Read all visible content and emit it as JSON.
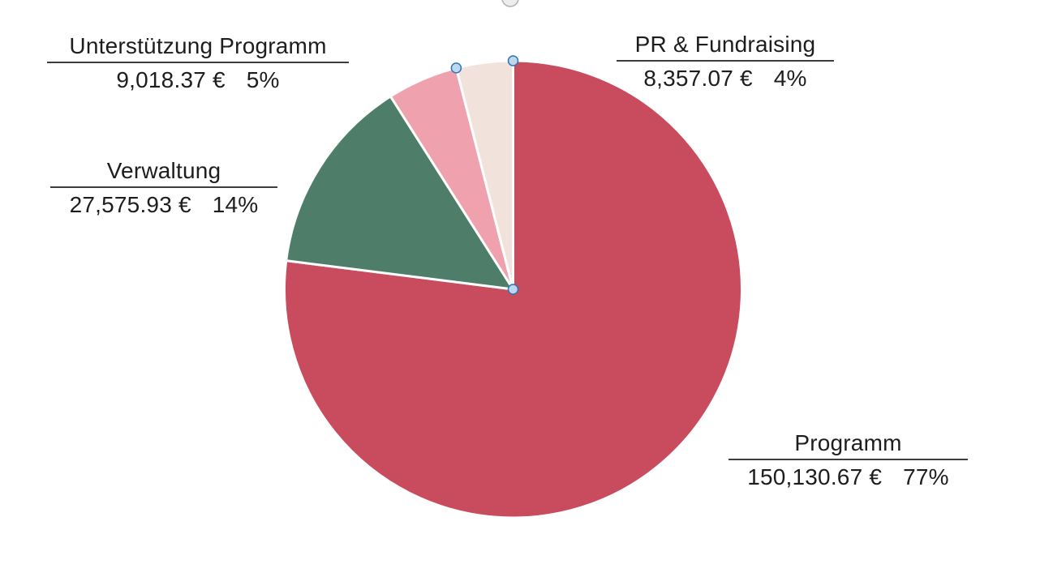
{
  "chart_data": {
    "type": "pie",
    "title": "",
    "currency": "€",
    "direction": "clockwise",
    "start_angle_deg": 0,
    "legend_position": "none",
    "slice_border_color": "#FFFFFF",
    "selected_slice": "PR & Fundraising",
    "handle_fill": "#BDD7EE",
    "handle_stroke": "#2E75B6",
    "slices": [
      {
        "label": "Programm",
        "value": 150130.67,
        "value_text": "150,130.67 €",
        "percent": 77,
        "percent_text": "77%",
        "color": "#C94B5E"
      },
      {
        "label": "Verwaltung",
        "value": 27575.93,
        "value_text": "27,575.93 €",
        "percent": 14,
        "percent_text": "14%",
        "color": "#4E7E69"
      },
      {
        "label": "Unterstützung Programm",
        "value": 9018.37,
        "value_text": "9,018.37 €",
        "percent": 5,
        "percent_text": "5%",
        "color": "#EFA2AE"
      },
      {
        "label": "PR & Fundraising",
        "value": 8357.07,
        "value_text": "8,357.07 €",
        "percent": 4,
        "percent_text": "4%",
        "color": "#F1E2DB"
      }
    ]
  }
}
